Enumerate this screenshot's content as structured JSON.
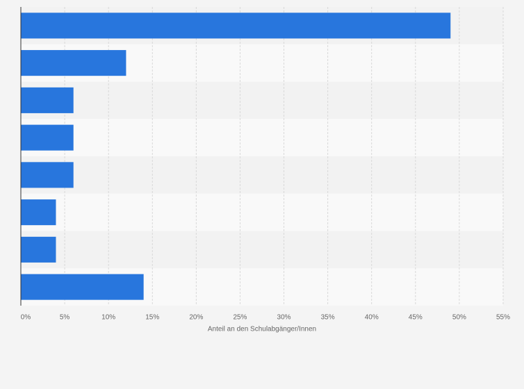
{
  "chart_data": {
    "type": "bar",
    "orientation": "horizontal",
    "x_label": "Anteil an den Schulabgänger/Innen",
    "categories": [
      null,
      null,
      null,
      null,
      null,
      null,
      null,
      null
    ],
    "values": [
      49,
      12,
      6,
      6,
      6,
      4,
      4,
      14
    ],
    "color": "#2876dd",
    "xlim": [
      0,
      55
    ],
    "xticks": [
      {
        "value": 0,
        "label": "0%"
      },
      {
        "value": 5,
        "label": "5%"
      },
      {
        "value": 10,
        "label": "10%"
      },
      {
        "value": 15,
        "label": "15%"
      },
      {
        "value": 20,
        "label": "20%"
      },
      {
        "value": 25,
        "label": "25%"
      },
      {
        "value": 30,
        "label": "30%"
      },
      {
        "value": 35,
        "label": "35%"
      },
      {
        "value": 40,
        "label": "40%"
      },
      {
        "value": 45,
        "label": "45%"
      },
      {
        "value": 50,
        "label": "50%"
      },
      {
        "value": 55,
        "label": "55%"
      }
    ],
    "grid": true
  }
}
